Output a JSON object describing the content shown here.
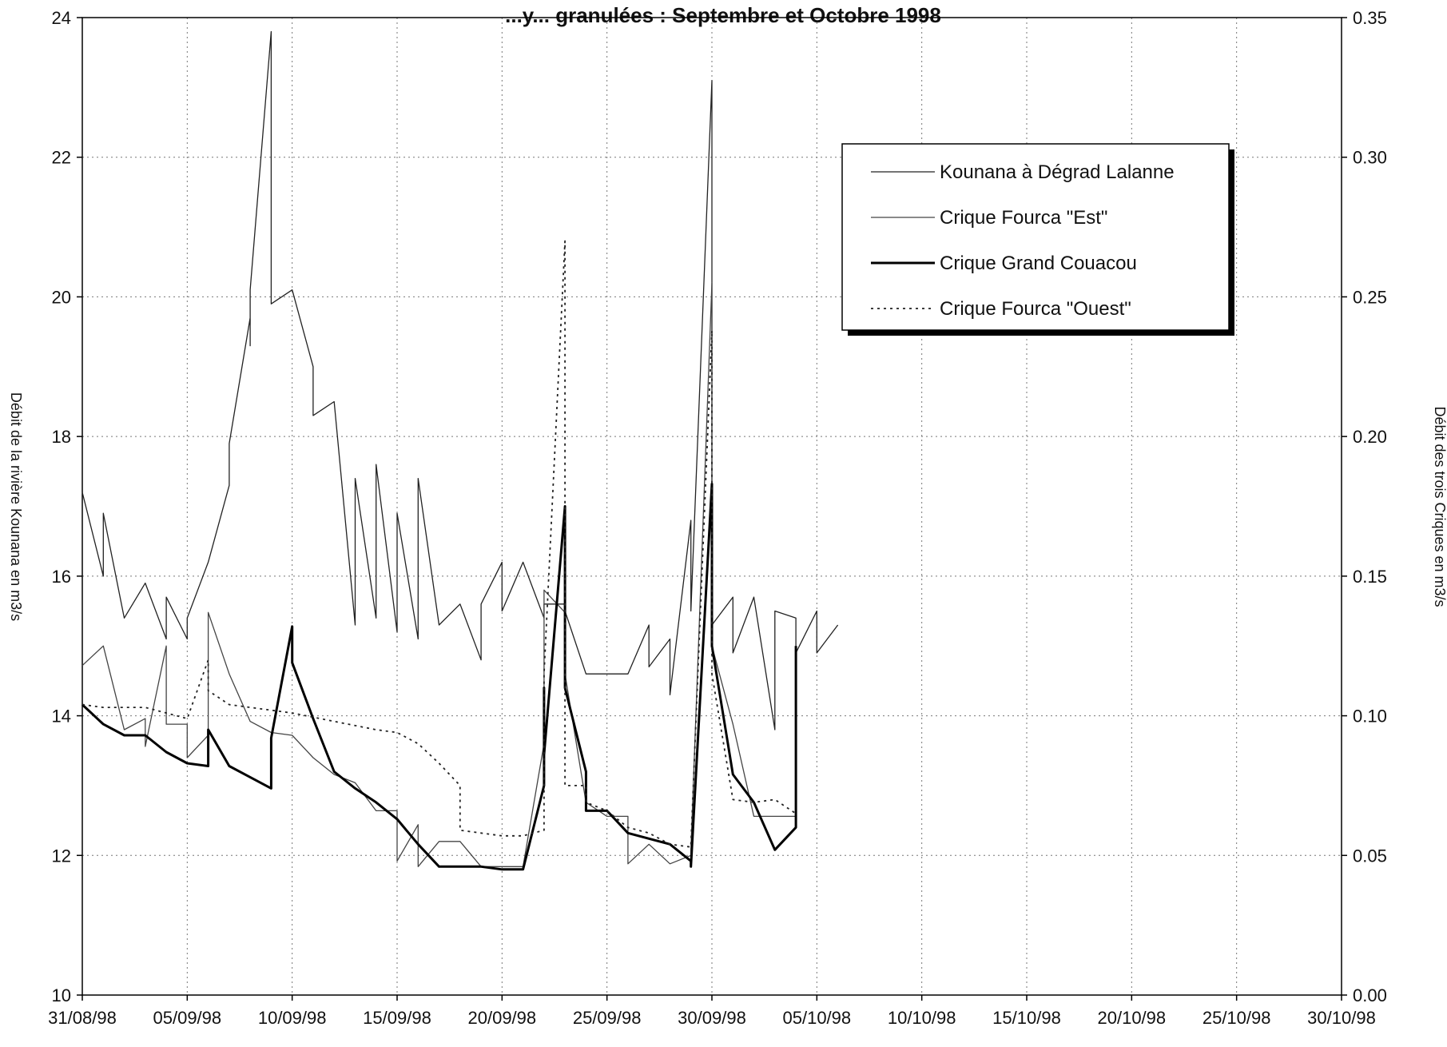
{
  "chart_data": {
    "type": "line",
    "title": "...y... granulées : Septembre et Octobre 1998",
    "y_left_label": "Débit de la rivière Kounana en m3/s",
    "y_right_label": "Débit des trois Criques en m3/s",
    "y_left_lim": [
      10,
      24
    ],
    "y_right_lim": [
      0.0,
      0.35
    ],
    "x_range": [
      "31/08/98",
      "30/10/98"
    ],
    "grid": true,
    "legend_position": "top-right",
    "x_ticks": [
      "31/08/98",
      "05/09/98",
      "10/09/98",
      "15/09/98",
      "20/09/98",
      "25/09/98",
      "30/09/98",
      "05/10/98",
      "10/10/98",
      "15/10/98",
      "20/10/98",
      "25/10/98",
      "30/10/98"
    ],
    "y_left_ticks": [
      "10",
      "12",
      "14",
      "16",
      "18",
      "20",
      "22",
      "24"
    ],
    "y_right_ticks": [
      "0.00",
      "0.05",
      "0.10",
      "0.15",
      "0.20",
      "0.25",
      "0.30",
      "0.35"
    ],
    "series": [
      {
        "name": "Kounana à Dégrad Lalanne",
        "axis": "left",
        "style": "thin",
        "color": "#222222",
        "x": [
          "31/08/98",
          "01/09/98",
          "01/09/98",
          "02/09/98",
          "03/09/98",
          "04/09/98",
          "04/09/98",
          "05/09/98",
          "05/09/98",
          "06/09/98",
          "07/09/98",
          "07/09/98",
          "08/09/98",
          "08/09/98",
          "08/09/98",
          "09/09/98",
          "09/09/98",
          "10/09/98",
          "11/09/98",
          "11/09/98",
          "12/09/98",
          "12/09/98",
          "13/09/98",
          "13/09/98",
          "14/09/98",
          "14/09/98",
          "15/09/98",
          "15/09/98",
          "16/09/98",
          "16/09/98",
          "17/09/98",
          "18/09/98",
          "19/09/98",
          "19/09/98",
          "20/09/98",
          "20/09/98",
          "21/09/98",
          "22/09/98",
          "22/09/98",
          "23/09/98",
          "23/09/98",
          "24/09/98",
          "25/09/98",
          "26/09/98",
          "27/09/98",
          "27/09/98",
          "28/09/98",
          "28/09/98",
          "29/09/98",
          "29/09/98",
          "30/09/98",
          "30/09/98",
          "30/09/98",
          "01/10/98",
          "01/10/98",
          "02/10/98",
          "03/10/98",
          "03/10/98",
          "04/10/98",
          "04/10/98",
          "05/10/98",
          "05/10/98",
          "06/10/98"
        ],
        "y": [
          17.2,
          16.0,
          16.9,
          15.4,
          15.9,
          15.1,
          15.7,
          15.1,
          15.4,
          16.2,
          17.3,
          17.9,
          19.7,
          19.3,
          20.1,
          23.8,
          19.9,
          20.1,
          19.0,
          18.3,
          18.5,
          18.5,
          15.3,
          17.4,
          15.4,
          17.6,
          15.2,
          16.9,
          15.1,
          17.4,
          15.3,
          15.6,
          14.8,
          15.6,
          16.2,
          15.5,
          16.2,
          15.4,
          15.6,
          15.6,
          15.5,
          14.6,
          14.6,
          14.6,
          15.3,
          14.7,
          15.1,
          14.3,
          16.8,
          15.5,
          23.1,
          16.0,
          15.3,
          15.7,
          14.9,
          15.7,
          13.8,
          15.5,
          15.4,
          14.9,
          15.5,
          14.9,
          15.3
        ]
      },
      {
        "name": "Crique Fourca \"Est\"",
        "axis": "right",
        "style": "thin",
        "color": "#444444",
        "x": [
          "31/08/98",
          "01/09/98",
          "02/09/98",
          "03/09/98",
          "03/09/98",
          "04/09/98",
          "04/09/98",
          "05/09/98",
          "05/09/98",
          "06/09/98",
          "06/09/98",
          "07/09/98",
          "08/09/98",
          "09/09/98",
          "10/09/98",
          "11/09/98",
          "12/09/98",
          "13/09/98",
          "14/09/98",
          "15/09/98",
          "15/09/98",
          "16/09/98",
          "16/09/98",
          "17/09/98",
          "18/09/98",
          "19/09/98",
          "20/09/98",
          "21/09/98",
          "22/09/98",
          "22/09/98",
          "23/09/98",
          "23/09/98",
          "24/09/98",
          "25/09/98",
          "26/09/98",
          "26/09/98",
          "27/09/98",
          "28/09/98",
          "29/09/98",
          "29/09/98",
          "30/09/98",
          "30/09/98",
          "01/10/98",
          "02/10/98",
          "03/10/98",
          "04/10/98"
        ],
        "y": [
          0.118,
          0.125,
          0.095,
          0.099,
          0.089,
          0.125,
          0.097,
          0.097,
          0.085,
          0.093,
          0.137,
          0.115,
          0.098,
          0.094,
          0.093,
          0.085,
          0.079,
          0.076,
          0.066,
          0.066,
          0.048,
          0.061,
          0.046,
          0.055,
          0.055,
          0.046,
          0.046,
          0.046,
          0.09,
          0.145,
          0.137,
          0.115,
          0.069,
          0.064,
          0.064,
          0.047,
          0.054,
          0.047,
          0.05,
          0.052,
          0.255,
          0.125,
          0.097,
          0.064,
          0.064,
          0.064
        ]
      },
      {
        "name": "Crique Grand Couacou",
        "axis": "right",
        "style": "thick",
        "color": "#000000",
        "x": [
          "31/08/98",
          "01/09/98",
          "02/09/98",
          "03/09/98",
          "04/09/98",
          "05/09/98",
          "05/09/98",
          "06/09/98",
          "06/09/98",
          "06/09/98",
          "07/09/98",
          "08/09/98",
          "09/09/98",
          "09/09/98",
          "10/09/98",
          "10/09/98",
          "11/09/98",
          "12/09/98",
          "13/09/98",
          "14/09/98",
          "15/09/98",
          "16/09/98",
          "17/09/98",
          "18/09/98",
          "19/09/98",
          "20/09/98",
          "21/09/98",
          "22/09/98",
          "22/09/98",
          "22/09/98",
          "23/09/98",
          "23/09/98",
          "24/09/98",
          "24/09/98",
          "25/09/98",
          "26/09/98",
          "27/09/98",
          "28/09/98",
          "29/09/98",
          "29/09/98",
          "30/09/98",
          "30/09/98",
          "01/10/98",
          "02/10/98",
          "03/10/98",
          "04/10/98",
          "04/10/98"
        ],
        "y": [
          0.104,
          0.097,
          0.093,
          0.093,
          0.087,
          0.083,
          0.083,
          0.082,
          0.088,
          0.095,
          0.082,
          0.078,
          0.074,
          0.092,
          0.132,
          0.119,
          0.099,
          0.08,
          0.074,
          0.069,
          0.063,
          0.054,
          0.046,
          0.046,
          0.046,
          0.045,
          0.045,
          0.075,
          0.11,
          0.086,
          0.175,
          0.11,
          0.08,
          0.066,
          0.066,
          0.058,
          0.056,
          0.054,
          0.048,
          0.046,
          0.183,
          0.125,
          0.079,
          0.069,
          0.052,
          0.06,
          0.125
        ]
      },
      {
        "name": "Crique Fourca \"Ouest\"",
        "axis": "right",
        "style": "dotted",
        "color": "#222222",
        "x": [
          "31/08/98",
          "01/09/98",
          "02/09/98",
          "03/09/98",
          "04/09/98",
          "05/09/98",
          "06/09/98",
          "06/09/98",
          "07/09/98",
          "08/09/98",
          "10/09/98",
          "12/09/98",
          "14/09/98",
          "15/09/98",
          "16/09/98",
          "17/09/98",
          "18/09/98",
          "18/09/98",
          "19/09/98",
          "20/09/98",
          "21/09/98",
          "22/09/98",
          "22/09/98",
          "23/09/98",
          "23/09/98",
          "24/09/98",
          "24/09/98",
          "25/09/98",
          "26/09/98",
          "27/09/98",
          "28/09/98",
          "29/09/98",
          "29/09/98",
          "30/09/98",
          "30/09/98",
          "01/10/98",
          "02/10/98",
          "03/10/98",
          "04/10/98"
        ],
        "y": [
          0.104,
          0.103,
          0.103,
          0.103,
          0.101,
          0.099,
          0.12,
          0.109,
          0.104,
          0.103,
          0.101,
          0.098,
          0.095,
          0.094,
          0.09,
          0.083,
          0.075,
          0.059,
          0.058,
          0.057,
          0.057,
          0.059,
          0.115,
          0.27,
          0.075,
          0.075,
          0.069,
          0.066,
          0.06,
          0.058,
          0.054,
          0.053,
          0.054,
          0.238,
          0.115,
          0.07,
          0.069,
          0.07,
          0.065
        ]
      }
    ]
  }
}
